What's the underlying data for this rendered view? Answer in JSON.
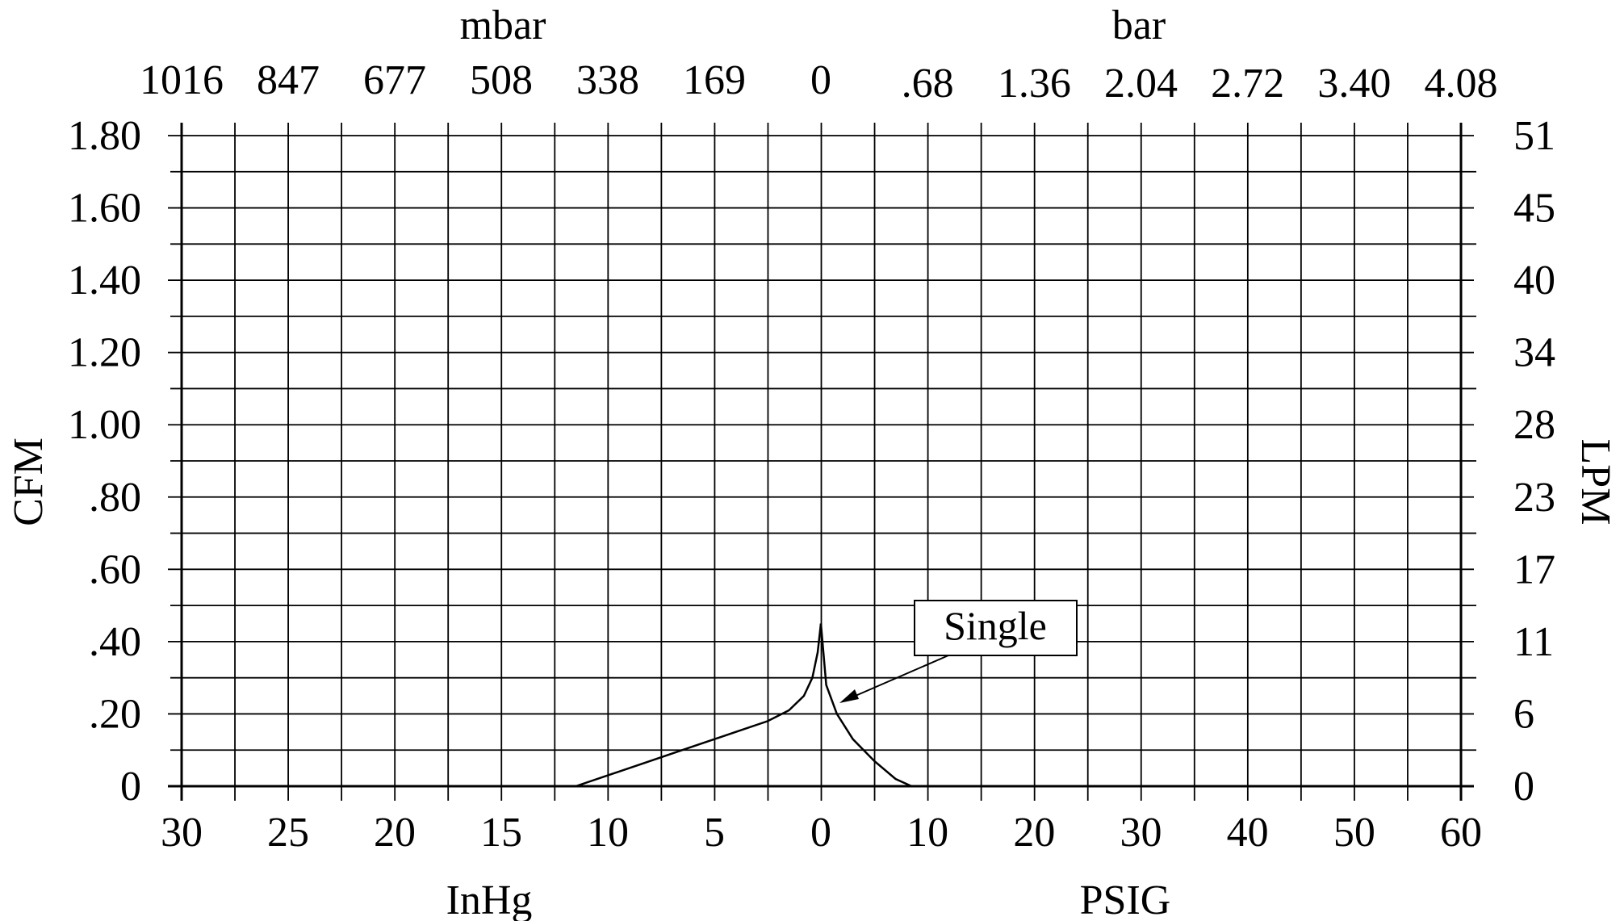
{
  "chart_data": {
    "type": "line",
    "title": "",
    "y_left": {
      "label": "CFM",
      "range": [
        0,
        1.8
      ],
      "ticks": [
        0,
        0.2,
        0.4,
        0.6,
        0.8,
        1.0,
        1.2,
        1.4,
        1.6,
        1.8
      ],
      "tick_labels": [
        "0",
        ".20",
        ".40",
        ".60",
        ".80",
        "1.00",
        "1.20",
        "1.40",
        "1.60",
        "1.80"
      ]
    },
    "y_right": {
      "label": "LPM",
      "tick_labels": [
        "0",
        "6",
        "11",
        "17",
        "23",
        "28",
        "34",
        "40",
        "45",
        "51"
      ]
    },
    "x_bottom": {
      "vacuum_label": "InHg",
      "vacuum_tick_labels": [
        "30",
        "25",
        "20",
        "15",
        "10",
        "5",
        "0"
      ],
      "pressure_label": "PSIG",
      "pressure_tick_labels": [
        "10",
        "20",
        "30",
        "40",
        "50",
        "60"
      ]
    },
    "x_top": {
      "vacuum_label": "mbar",
      "vacuum_tick_labels": [
        "1016",
        "847",
        "677",
        "508",
        "338",
        "169",
        "0"
      ],
      "pressure_label": "bar",
      "pressure_tick_labels": [
        ".68",
        "1.36",
        "2.04",
        "2.72",
        "3.40",
        "4.08"
      ]
    },
    "grid": true,
    "series": [
      {
        "name": "Single",
        "vacuum_side": {
          "unit": "InHg",
          "x": [
            11.5,
            10,
            8,
            6,
            4,
            2.5,
            1.5,
            0.8,
            0.4,
            0.15,
            0
          ],
          "y": [
            0,
            0.03,
            0.07,
            0.11,
            0.15,
            0.18,
            0.21,
            0.25,
            0.3,
            0.37,
            0.45
          ]
        },
        "pressure_side": {
          "unit": "PSIG",
          "x": [
            0,
            0.5,
            1.5,
            3,
            5,
            7,
            8.5
          ],
          "y": [
            0.45,
            0.28,
            0.2,
            0.13,
            0.07,
            0.02,
            0
          ]
        }
      }
    ],
    "annotations": [
      {
        "text": "Single"
      }
    ]
  }
}
